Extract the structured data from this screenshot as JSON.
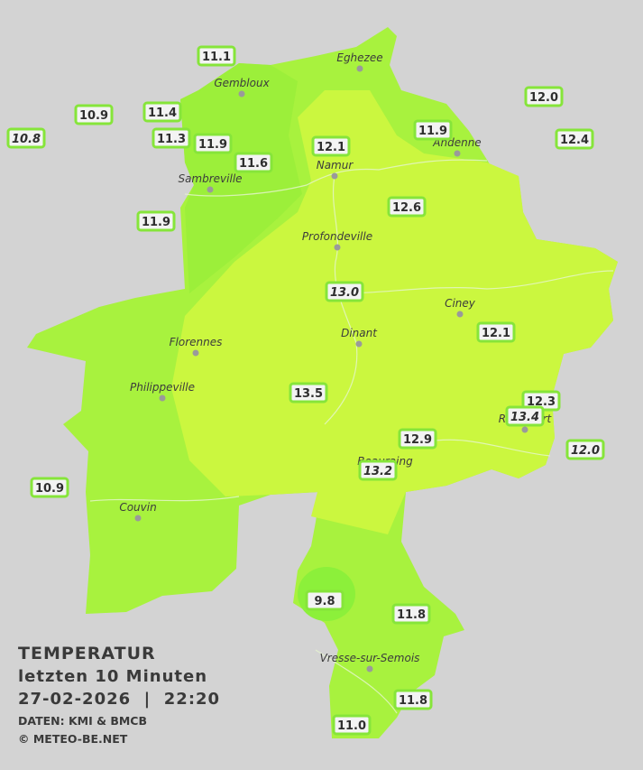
{
  "caption": {
    "title": "TEMPERATUR",
    "subtitle": "letzten 10 Minuten",
    "datetime": "27-02-2026  |  22:20",
    "source": "DATEN: KMI & BMCB",
    "copyright": "© METEO-BE.NET"
  },
  "cities": [
    "Eghezee",
    "Gembloux",
    "Andenne",
    "Namur",
    "Sambreville",
    "Profondeville",
    "Ciney",
    "Dinant",
    "Florennes",
    "Philippeville",
    "Rochefort",
    "Beauraing",
    "Couvin",
    "Vresse-sur-Semois"
  ],
  "stations": [
    {
      "label": "11.1",
      "italic": false
    },
    {
      "label": "10.9",
      "italic": false
    },
    {
      "label": "11.4",
      "italic": false
    },
    {
      "label": "10.8",
      "italic": true
    },
    {
      "label": "11.3",
      "italic": false
    },
    {
      "label": "11.9",
      "italic": false
    },
    {
      "label": "11.6",
      "italic": false
    },
    {
      "label": "12.1",
      "italic": false
    },
    {
      "label": "11.9",
      "italic": false
    },
    {
      "label": "12.0",
      "italic": false
    },
    {
      "label": "12.4",
      "italic": false
    },
    {
      "label": "11.9",
      "italic": false
    },
    {
      "label": "12.6",
      "italic": false
    },
    {
      "label": "13.0",
      "italic": true
    },
    {
      "label": "12.1",
      "italic": false
    },
    {
      "label": "13.5",
      "italic": false
    },
    {
      "label": "12.3",
      "italic": false
    },
    {
      "label": "13.4",
      "italic": true
    },
    {
      "label": "12.9",
      "italic": false
    },
    {
      "label": "12.0",
      "italic": true
    },
    {
      "label": "13.2",
      "italic": true
    },
    {
      "label": "10.9",
      "italic": false
    },
    {
      "label": "9.8",
      "italic": false
    },
    {
      "label": "11.8",
      "italic": false
    },
    {
      "label": "11.8",
      "italic": false
    },
    {
      "label": "11.0",
      "italic": false
    }
  ]
}
